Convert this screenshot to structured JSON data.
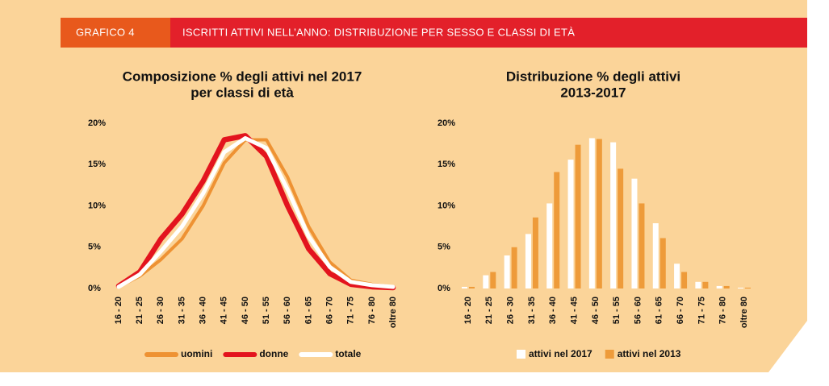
{
  "header": {
    "label": "GRAFICO 4",
    "title": "ISCRITTI ATTIVI NELL’ANNO: DISTRIBUZIONE PER SESSO E CLASSI DI ETÀ"
  },
  "chart_data": [
    {
      "type": "line",
      "title": [
        "Composizione % degli attivi nel 2017",
        "per classi di età"
      ],
      "categories": [
        "16 - 20",
        "21 - 25",
        "26 - 30",
        "31 - 35",
        "36 - 40",
        "41 - 45",
        "46 - 50",
        "51 - 55",
        "56 - 60",
        "61 - 65",
        "66 - 70",
        "71 - 75",
        "76 - 80",
        "oltre 80"
      ],
      "series": [
        {
          "name": "uomini",
          "color": "#ee9233",
          "values": [
            0.2,
            1.5,
            3.5,
            6,
            10,
            15.2,
            18,
            18,
            13.5,
            7.5,
            3.2,
            1,
            0.5,
            0.2
          ]
        },
        {
          "name": "donne",
          "color": "#e3141e",
          "values": [
            0.3,
            2,
            6,
            9,
            13,
            18,
            18.5,
            16,
            10,
            4.8,
            1.8,
            0.5,
            0.2,
            0.1
          ]
        },
        {
          "name": "totale",
          "color": "#ffffff",
          "values": [
            0.2,
            1.7,
            4.5,
            7.5,
            11.5,
            16.5,
            18.2,
            17,
            12,
            6.3,
            2.6,
            0.8,
            0.4,
            0.2
          ]
        }
      ],
      "ylim": [
        0,
        20
      ],
      "yticks": [
        {
          "value": 0,
          "label": "0%"
        },
        {
          "value": 5,
          "label": "5%"
        },
        {
          "value": 10,
          "label": "10%"
        },
        {
          "value": 15,
          "label": "15%"
        },
        {
          "value": 20,
          "label": "20%"
        }
      ]
    },
    {
      "type": "bar",
      "title": [
        "Distribuzione % degli attivi",
        "2013-2017"
      ],
      "categories": [
        "16 - 20",
        "21 - 25",
        "26 - 30",
        "31 - 35",
        "36 - 40",
        "41 - 45",
        "46 - 50",
        "51 - 55",
        "56 - 60",
        "61 - 65",
        "66 - 70",
        "71 - 75",
        "76 - 80",
        "oltre 80"
      ],
      "series": [
        {
          "name": "attivi nel 2017",
          "color": "#ffffff",
          "values": [
            0.2,
            1.6,
            4,
            6.6,
            10.3,
            15.6,
            18.2,
            17.7,
            13.3,
            7.9,
            3,
            0.8,
            0.3,
            0.1
          ]
        },
        {
          "name": "attivi nel 2013",
          "color": "#ee9b3a",
          "values": [
            0.2,
            2,
            5,
            8.6,
            14.1,
            17.4,
            18.1,
            14.5,
            10.3,
            6.1,
            2,
            0.8,
            0.3,
            0.1
          ]
        }
      ],
      "ylim": [
        0,
        20
      ],
      "yticks": [
        {
          "value": 0,
          "label": "0%"
        },
        {
          "value": 5,
          "label": "5%"
        },
        {
          "value": 10,
          "label": "10%"
        },
        {
          "value": 15,
          "label": "15%"
        },
        {
          "value": 20,
          "label": "20%"
        }
      ]
    }
  ]
}
